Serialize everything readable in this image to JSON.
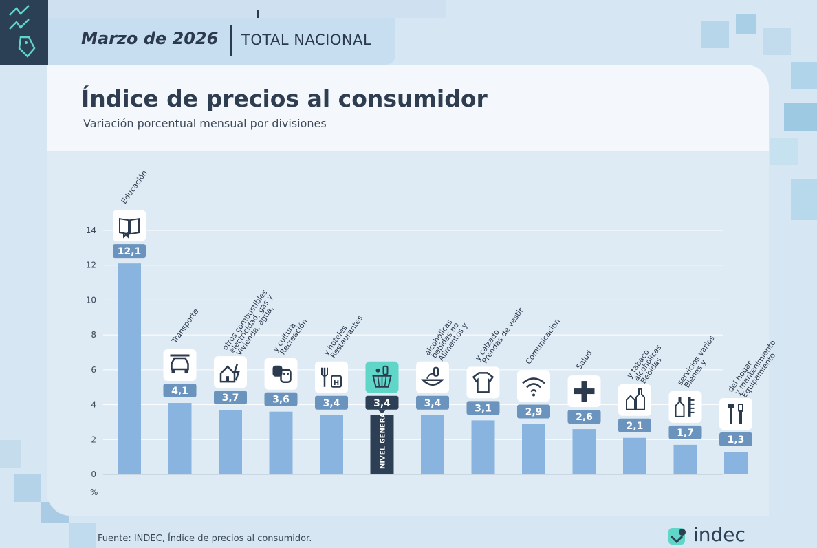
{
  "header": {
    "date": "Marzo de 2026",
    "scope": "TOTAL NACIONAL"
  },
  "title": "Índice de precios al consumidor",
  "subtitle": "Variación porcentual mensual por divisiones",
  "footer": {
    "source": "Fuente: INDEC, Índice de precios al consumidor.",
    "brand": "indec"
  },
  "colors": {
    "bar": "#8ab4e0",
    "bar_highlight": "#2d3f55",
    "label_box": "#6a93bd",
    "icon_highlight": "#5fd6c8"
  },
  "chart_data": {
    "type": "bar",
    "ylabel": "%",
    "ylim": [
      0,
      14
    ],
    "yticks": [
      0,
      2,
      4,
      6,
      8,
      10,
      12,
      14
    ],
    "grid": true,
    "categories": [
      "Educación",
      "Transporte",
      "Vivienda, agua, electricidad, gas y otros combustibles",
      "Recreación y cultura",
      "Restaurantes y hoteles",
      "NIVEL GENERAL",
      "Alimentos y bebidas no alcohólicas",
      "Prendas de vestir y calzado",
      "Comunicación",
      "Salud",
      "Bebidas alcohólicas y tabaco",
      "Bienes y servicios varios",
      "Equipamiento y mantenimiento del hogar"
    ],
    "values": [
      12.1,
      4.1,
      3.7,
      3.6,
      3.4,
      3.4,
      3.4,
      3.1,
      2.9,
      2.6,
      2.1,
      1.7,
      1.3
    ],
    "value_labels": [
      "12,1",
      "4,1",
      "3,7",
      "3,6",
      "3,4",
      "3,4",
      "3,4",
      "3,1",
      "2,9",
      "2,6",
      "2,1",
      "1,7",
      "1,3"
    ],
    "label_lines": [
      [
        "Educación"
      ],
      [
        "Transporte"
      ],
      [
        "Vivienda, agua,",
        "electricidad, gas y",
        "otros combustibles"
      ],
      [
        "Recreación",
        "y cultura"
      ],
      [
        "Restaurantes",
        "y hoteles"
      ],
      [],
      [
        "Alimentos y",
        "bebidas no",
        "alcohólicas"
      ],
      [
        "Prendas de vestir",
        "y calzado"
      ],
      [
        "Comunicación"
      ],
      [
        "Salud"
      ],
      [
        "Bebidas",
        "alcohólicas",
        "y tabaco"
      ],
      [
        "Bienes y",
        "servicios varios"
      ],
      [
        "Equipamiento",
        "y mantenimiento",
        "del hogar"
      ]
    ],
    "icons": [
      "book-icon",
      "car-icon",
      "house-energy-icon",
      "theater-masks-icon",
      "restaurant-hotel-icon",
      "basket-icon",
      "food-bowl-icon",
      "tshirt-icon",
      "wifi-icon",
      "plus-icon",
      "bottles-icon",
      "soap-comb-icon",
      "tools-icon"
    ],
    "highlight_index": 5
  }
}
